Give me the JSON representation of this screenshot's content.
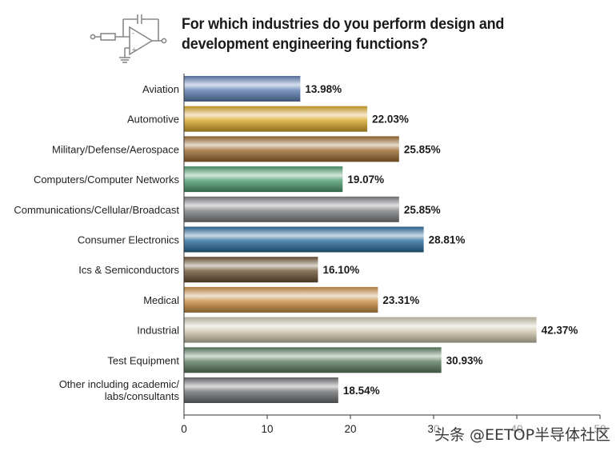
{
  "title": "For which industries do you perform design and development engineering functions?",
  "watermark": "头条 @EETOP半导体社区",
  "chart_data": {
    "type": "bar",
    "orientation": "horizontal",
    "title": "For which industries do you perform design and development engineering functions?",
    "categories": [
      "Aviation",
      "Automotive",
      "Military/Defense/Aerospace",
      "Computers/Computer Networks",
      "Communications/Cellular/Broadcast",
      "Consumer Electronics",
      "Ics & Semiconductors",
      "Medical",
      "Industrial",
      "Test Equipment",
      "Other including academic/ labs/consultants"
    ],
    "values": [
      13.98,
      22.03,
      25.85,
      19.07,
      25.85,
      28.81,
      16.1,
      23.31,
      42.37,
      30.93,
      18.54
    ],
    "value_labels": [
      "13.98%",
      "22.03%",
      "25.85%",
      "19.07%",
      "25.85%",
      "28.81%",
      "16.10%",
      "23.31%",
      "42.37%",
      "30.93%",
      "18.54%"
    ],
    "xlim": [
      0,
      50
    ],
    "xticks": [
      0,
      10,
      20,
      30,
      40,
      50
    ],
    "xtick_labels": [
      "0",
      "10",
      "20",
      "30",
      "40",
      "50"
    ],
    "grid": false,
    "colors": [
      "#5f7fb5",
      "#d9a82a",
      "#9c6a2f",
      "#4f9e72",
      "#7d7f82",
      "#2b6c9c",
      "#6e5234",
      "#c98d45",
      "#cfc7ae",
      "#5c7d60",
      "#6d6f72"
    ]
  }
}
